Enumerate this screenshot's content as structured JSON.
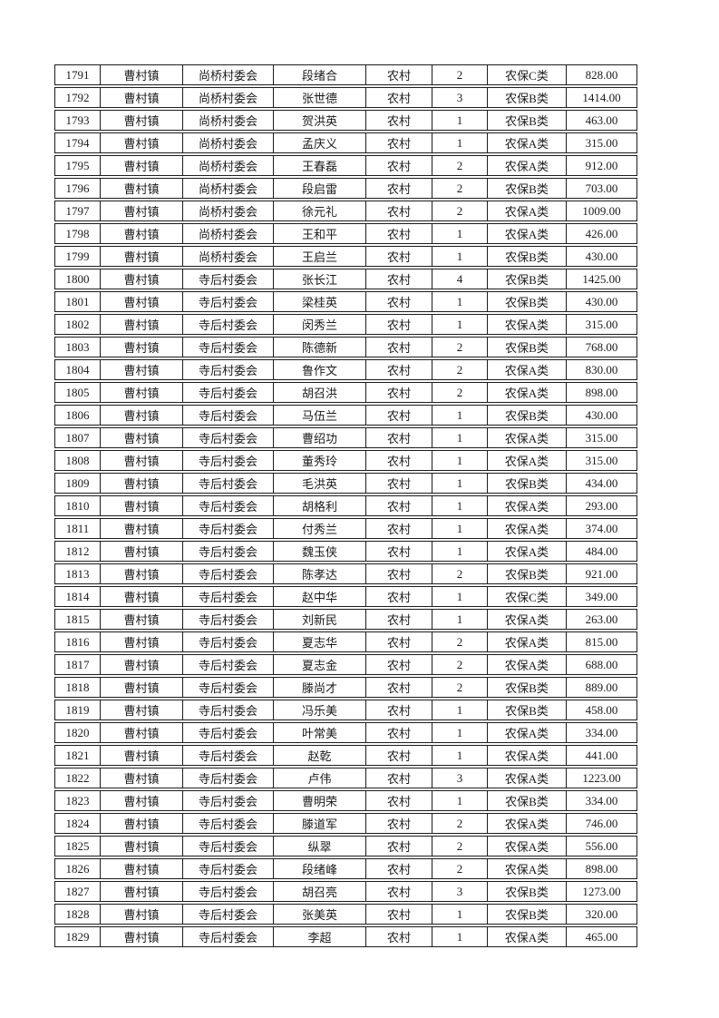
{
  "document": {
    "background_color": "#ffffff",
    "text_color": "#1b1b1b",
    "border_color": "#1c1c1c"
  },
  "table": {
    "rows": [
      [
        "1791",
        "曹村镇",
        "尚桥村委会",
        "段绪合",
        "农村",
        "2",
        "农保C类",
        "828.00"
      ],
      [
        "1792",
        "曹村镇",
        "尚桥村委会",
        "张世德",
        "农村",
        "3",
        "农保B类",
        "1414.00"
      ],
      [
        "1793",
        "曹村镇",
        "尚桥村委会",
        "贺洪英",
        "农村",
        "1",
        "农保B类",
        "463.00"
      ],
      [
        "1794",
        "曹村镇",
        "尚桥村委会",
        "孟庆义",
        "农村",
        "1",
        "农保A类",
        "315.00"
      ],
      [
        "1795",
        "曹村镇",
        "尚桥村委会",
        "王春磊",
        "农村",
        "2",
        "农保A类",
        "912.00"
      ],
      [
        "1796",
        "曹村镇",
        "尚桥村委会",
        "段启雷",
        "农村",
        "2",
        "农保B类",
        "703.00"
      ],
      [
        "1797",
        "曹村镇",
        "尚桥村委会",
        "徐元礼",
        "农村",
        "2",
        "农保A类",
        "1009.00"
      ],
      [
        "1798",
        "曹村镇",
        "尚桥村委会",
        "王和平",
        "农村",
        "1",
        "农保A类",
        "426.00"
      ],
      [
        "1799",
        "曹村镇",
        "尚桥村委会",
        "王启兰",
        "农村",
        "1",
        "农保B类",
        "430.00"
      ],
      [
        "1800",
        "曹村镇",
        "寺后村委会",
        "张长江",
        "农村",
        "4",
        "农保B类",
        "1425.00"
      ],
      [
        "1801",
        "曹村镇",
        "寺后村委会",
        "梁桂英",
        "农村",
        "1",
        "农保B类",
        "430.00"
      ],
      [
        "1802",
        "曹村镇",
        "寺后村委会",
        "闵秀兰",
        "农村",
        "1",
        "农保A类",
        "315.00"
      ],
      [
        "1803",
        "曹村镇",
        "寺后村委会",
        "陈德新",
        "农村",
        "2",
        "农保B类",
        "768.00"
      ],
      [
        "1804",
        "曹村镇",
        "寺后村委会",
        "鲁作文",
        "农村",
        "2",
        "农保A类",
        "830.00"
      ],
      [
        "1805",
        "曹村镇",
        "寺后村委会",
        "胡召洪",
        "农村",
        "2",
        "农保A类",
        "898.00"
      ],
      [
        "1806",
        "曹村镇",
        "寺后村委会",
        "马伍兰",
        "农村",
        "1",
        "农保B类",
        "430.00"
      ],
      [
        "1807",
        "曹村镇",
        "寺后村委会",
        "曹绍功",
        "农村",
        "1",
        "农保A类",
        "315.00"
      ],
      [
        "1808",
        "曹村镇",
        "寺后村委会",
        "董秀玲",
        "农村",
        "1",
        "农保A类",
        "315.00"
      ],
      [
        "1809",
        "曹村镇",
        "寺后村委会",
        "毛洪英",
        "农村",
        "1",
        "农保B类",
        "434.00"
      ],
      [
        "1810",
        "曹村镇",
        "寺后村委会",
        "胡格利",
        "农村",
        "1",
        "农保A类",
        "293.00"
      ],
      [
        "1811",
        "曹村镇",
        "寺后村委会",
        "付秀兰",
        "农村",
        "1",
        "农保A类",
        "374.00"
      ],
      [
        "1812",
        "曹村镇",
        "寺后村委会",
        "魏玉侠",
        "农村",
        "1",
        "农保A类",
        "484.00"
      ],
      [
        "1813",
        "曹村镇",
        "寺后村委会",
        "陈孝达",
        "农村",
        "2",
        "农保B类",
        "921.00"
      ],
      [
        "1814",
        "曹村镇",
        "寺后村委会",
        "赵中华",
        "农村",
        "1",
        "农保C类",
        "349.00"
      ],
      [
        "1815",
        "曹村镇",
        "寺后村委会",
        "刘新民",
        "农村",
        "1",
        "农保A类",
        "263.00"
      ],
      [
        "1816",
        "曹村镇",
        "寺后村委会",
        "夏志华",
        "农村",
        "2",
        "农保A类",
        "815.00"
      ],
      [
        "1817",
        "曹村镇",
        "寺后村委会",
        "夏志金",
        "农村",
        "2",
        "农保A类",
        "688.00"
      ],
      [
        "1818",
        "曹村镇",
        "寺后村委会",
        "滕尚才",
        "农村",
        "2",
        "农保B类",
        "889.00"
      ],
      [
        "1819",
        "曹村镇",
        "寺后村委会",
        "冯乐美",
        "农村",
        "1",
        "农保B类",
        "458.00"
      ],
      [
        "1820",
        "曹村镇",
        "寺后村委会",
        "叶常美",
        "农村",
        "1",
        "农保A类",
        "334.00"
      ],
      [
        "1821",
        "曹村镇",
        "寺后村委会",
        "赵乾",
        "农村",
        "1",
        "农保A类",
        "441.00"
      ],
      [
        "1822",
        "曹村镇",
        "寺后村委会",
        "卢伟",
        "农村",
        "3",
        "农保A类",
        "1223.00"
      ],
      [
        "1823",
        "曹村镇",
        "寺后村委会",
        "曹明荣",
        "农村",
        "1",
        "农保B类",
        "334.00"
      ],
      [
        "1824",
        "曹村镇",
        "寺后村委会",
        "滕道军",
        "农村",
        "2",
        "农保A类",
        "746.00"
      ],
      [
        "1825",
        "曹村镇",
        "寺后村委会",
        "纵翠",
        "农村",
        "2",
        "农保A类",
        "556.00"
      ],
      [
        "1826",
        "曹村镇",
        "寺后村委会",
        "段绪峰",
        "农村",
        "2",
        "农保A类",
        "898.00"
      ],
      [
        "1827",
        "曹村镇",
        "寺后村委会",
        "胡召亮",
        "农村",
        "3",
        "农保B类",
        "1273.00"
      ],
      [
        "1828",
        "曹村镇",
        "寺后村委会",
        "张美英",
        "农村",
        "1",
        "农保B类",
        "320.00"
      ],
      [
        "1829",
        "曹村镇",
        "寺后村委会",
        "李超",
        "农村",
        "1",
        "农保A类",
        "465.00"
      ]
    ]
  }
}
